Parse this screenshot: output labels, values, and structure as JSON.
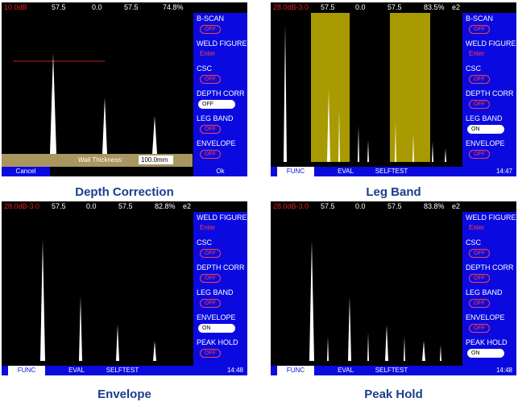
{
  "captions": [
    "Depth Correction",
    "Leg Band",
    "Envelope",
    "Peak Hold"
  ],
  "panel1": {
    "status": {
      "gain": "10.0dB",
      "v1": "57.5",
      "v2": "0.0",
      "v3": "57.5",
      "v4": "74.8%"
    },
    "menu": [
      {
        "label": "B-SCAN",
        "value": "OFF",
        "kind": "pill"
      },
      {
        "label": "WELD FIGURE",
        "value": "Enter",
        "kind": "text"
      },
      {
        "label": "CSC",
        "value": "OFF",
        "kind": "pill"
      },
      {
        "label": "DEPTH CORR",
        "value": "OFF",
        "kind": "pill-on"
      },
      {
        "label": "LEG BAND",
        "value": "OFF",
        "kind": "pill"
      },
      {
        "label": "ENVELOPE",
        "value": "OFF",
        "kind": "pill"
      }
    ],
    "wall_label": "Wall Thickness:",
    "wall_value": "100.0mm",
    "cancel": "Cancel",
    "ok": "Ok"
  },
  "panel2": {
    "status": {
      "gain": "28.0dB-3.0",
      "v1": "57.5",
      "v2": "0.0",
      "v3": "57.5",
      "v4": "83.5%",
      "tag": "e2"
    },
    "menu": [
      {
        "label": "B-SCAN",
        "value": "OFF",
        "kind": "pill"
      },
      {
        "label": "WELD FIGURE",
        "value": "Enter",
        "kind": "text"
      },
      {
        "label": "CSC",
        "value": "OFF",
        "kind": "pill"
      },
      {
        "label": "DEPTH CORR",
        "value": "OFF",
        "kind": "pill"
      },
      {
        "label": "LEG BAND",
        "value": "ON",
        "kind": "pill-on"
      },
      {
        "label": "ENVELOPE",
        "value": "OFF",
        "kind": "pill"
      }
    ],
    "tabs": [
      "FUNC",
      "EVAL",
      "SELFTEST"
    ],
    "time": "14:47"
  },
  "panel3": {
    "status": {
      "gain": "28.0dB-3.0",
      "v1": "57.5",
      "v2": "0.0",
      "v3": "57.5",
      "v4": "82.8%",
      "tag": "e2"
    },
    "menu": [
      {
        "label": "WELD FIGURE",
        "value": "Enter",
        "kind": "text"
      },
      {
        "label": "CSC",
        "value": "OFF",
        "kind": "pill"
      },
      {
        "label": "DEPTH CORR",
        "value": "OFF",
        "kind": "pill"
      },
      {
        "label": "LEG BAND",
        "value": "OFF",
        "kind": "pill"
      },
      {
        "label": "ENVELOPE",
        "value": "ON",
        "kind": "pill-on"
      },
      {
        "label": "PEAK HOLD",
        "value": "OFF",
        "kind": "pill"
      }
    ],
    "tabs": [
      "FUNC",
      "EVAL",
      "SELFTEST"
    ],
    "time": "14:48"
  },
  "panel4": {
    "status": {
      "gain": "28.0dB-3.0",
      "v1": "57.5",
      "v2": "0.0",
      "v3": "57.5",
      "v4": "83.8%",
      "tag": "e2"
    },
    "menu": [
      {
        "label": "WELD FIGURE",
        "value": "Enter",
        "kind": "text"
      },
      {
        "label": "CSC",
        "value": "OFF",
        "kind": "pill"
      },
      {
        "label": "DEPTH CORR",
        "value": "OFF",
        "kind": "pill"
      },
      {
        "label": "LEG BAND",
        "value": "OFF",
        "kind": "pill"
      },
      {
        "label": "ENVELOPE",
        "value": "OFF",
        "kind": "pill"
      },
      {
        "label": "PEAK HOLD",
        "value": "ON",
        "kind": "pill-on"
      }
    ],
    "tabs": [
      "FUNC",
      "EVAL",
      "SELFTEST"
    ],
    "time": "14:48"
  },
  "colors": {
    "menu_blue": "#0a0ae0",
    "caption": "#1a3d8c",
    "gain_red": "#e02020",
    "band_olive": "#a89a00"
  }
}
